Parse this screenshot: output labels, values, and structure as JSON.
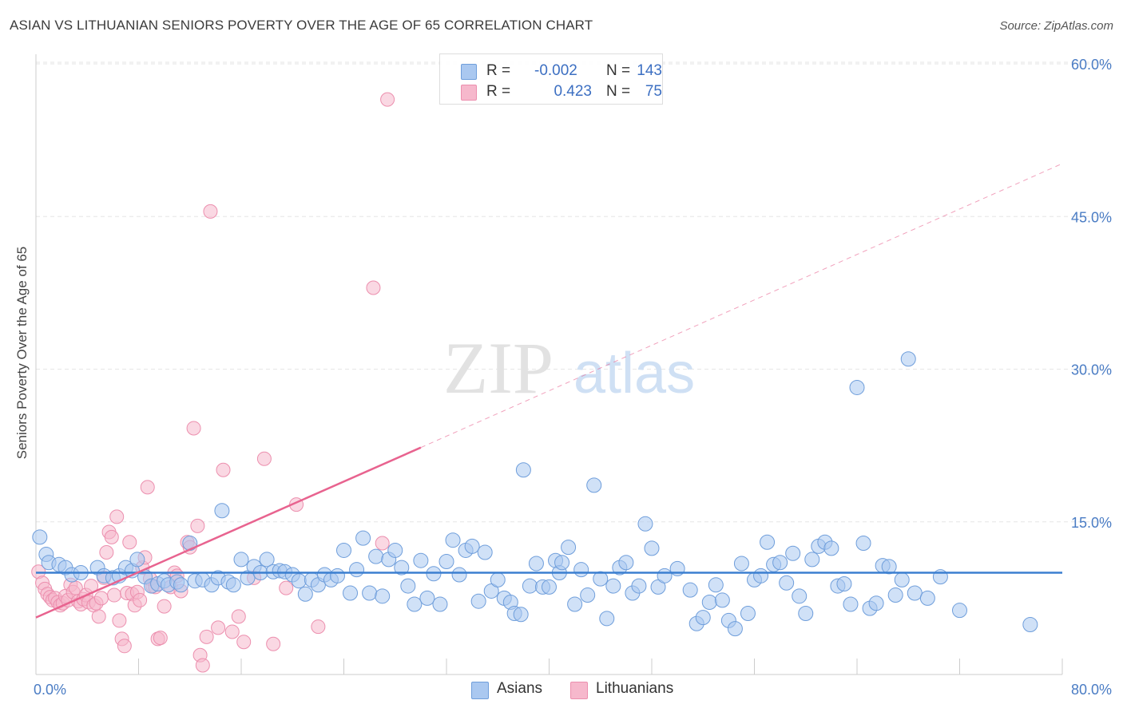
{
  "header": {
    "title": "ASIAN VS LITHUANIAN SENIORS POVERTY OVER THE AGE OF 65 CORRELATION CHART",
    "source": "Source: ZipAtlas.com"
  },
  "watermark": {
    "zip": "ZIP",
    "atlas": "atlas"
  },
  "legend": {
    "rows": [
      {
        "r_label": "R =",
        "r_value": "-0.002",
        "n_label": "N =",
        "n_value": "143"
      },
      {
        "r_label": "R =",
        "r_value": "0.423",
        "n_label": "N =",
        "n_value": "75"
      }
    ],
    "bottom": [
      "Asians",
      "Lithuanians"
    ]
  },
  "colors": {
    "asian_fill": "#aac8f0",
    "asian_stroke": "#6f9edb",
    "asian_line": "#3b7fd0",
    "lith_fill": "#f6b8cc",
    "lith_stroke": "#ec8fae",
    "lith_line": "#e8638f",
    "tick_text": "#4a7cc4",
    "grid": "#e6e6e6"
  },
  "chart_data": {
    "type": "scatter",
    "title": "ASIAN VS LITHUANIAN SENIORS POVERTY OVER THE AGE OF 65 CORRELATION CHART",
    "xlabel": "",
    "ylabel": "Seniors Poverty Over the Age of 65",
    "xlim": [
      0,
      80
    ],
    "ylim": [
      0,
      63
    ],
    "x_tick_labels": [
      "0.0%",
      "80.0%"
    ],
    "y_ticks": [
      15,
      30,
      45,
      60
    ],
    "y_tick_labels": [
      "15.0%",
      "30.0%",
      "45.0%",
      "60.0%"
    ],
    "grid": "horizontal dashed",
    "series": [
      {
        "name": "Asians",
        "stats": {
          "R": -0.002,
          "N": 143
        },
        "trend": {
          "x": [
            0,
            80
          ],
          "y": [
            10.0,
            10.0
          ]
        },
        "points": [
          [
            0.3,
            13.5
          ],
          [
            0.8,
            11.8
          ],
          [
            1.0,
            11.0
          ],
          [
            1.8,
            10.8
          ],
          [
            2.3,
            10.5
          ],
          [
            2.8,
            9.8
          ],
          [
            3.5,
            10.0
          ],
          [
            4.8,
            10.5
          ],
          [
            5.3,
            9.7
          ],
          [
            6.0,
            9.5
          ],
          [
            6.5,
            9.7
          ],
          [
            7.0,
            10.5
          ],
          [
            7.5,
            10.2
          ],
          [
            7.9,
            11.3
          ],
          [
            8.5,
            9.6
          ],
          [
            9.0,
            8.7
          ],
          [
            9.5,
            8.9
          ],
          [
            10.0,
            9.2
          ],
          [
            10.3,
            8.8
          ],
          [
            11.0,
            9.1
          ],
          [
            11.3,
            8.8
          ],
          [
            12.0,
            12.9
          ],
          [
            12.4,
            9.2
          ],
          [
            13.0,
            9.3
          ],
          [
            13.7,
            8.8
          ],
          [
            14.2,
            9.5
          ],
          [
            14.5,
            16.1
          ],
          [
            15.0,
            9.1
          ],
          [
            15.4,
            8.8
          ],
          [
            16.0,
            11.3
          ],
          [
            16.5,
            9.5
          ],
          [
            17.0,
            10.6
          ],
          [
            17.5,
            10.0
          ],
          [
            18.0,
            11.3
          ],
          [
            18.5,
            10.1
          ],
          [
            19.0,
            10.2
          ],
          [
            19.4,
            10.1
          ],
          [
            20.0,
            9.8
          ],
          [
            20.5,
            9.2
          ],
          [
            21.0,
            7.9
          ],
          [
            21.5,
            9.3
          ],
          [
            22.0,
            8.8
          ],
          [
            22.5,
            9.8
          ],
          [
            23.0,
            9.3
          ],
          [
            23.5,
            9.7
          ],
          [
            24.0,
            12.2
          ],
          [
            24.5,
            8.0
          ],
          [
            25.0,
            10.3
          ],
          [
            25.5,
            13.4
          ],
          [
            26.0,
            8.0
          ],
          [
            26.5,
            11.6
          ],
          [
            27.0,
            7.7
          ],
          [
            27.5,
            11.3
          ],
          [
            28.0,
            12.2
          ],
          [
            28.5,
            10.5
          ],
          [
            29.0,
            8.7
          ],
          [
            29.5,
            6.9
          ],
          [
            30.0,
            11.2
          ],
          [
            30.5,
            7.5
          ],
          [
            31.0,
            9.9
          ],
          [
            31.5,
            6.9
          ],
          [
            32.0,
            11.1
          ],
          [
            32.5,
            13.2
          ],
          [
            33.0,
            9.8
          ],
          [
            33.5,
            12.2
          ],
          [
            34.0,
            12.6
          ],
          [
            34.5,
            7.2
          ],
          [
            35.0,
            12.0
          ],
          [
            35.5,
            8.2
          ],
          [
            36.0,
            9.3
          ],
          [
            36.5,
            7.5
          ],
          [
            37.0,
            7.1
          ],
          [
            37.3,
            6.0
          ],
          [
            37.8,
            5.9
          ],
          [
            38.0,
            20.1
          ],
          [
            38.5,
            8.7
          ],
          [
            39.0,
            10.9
          ],
          [
            39.5,
            8.6
          ],
          [
            40.0,
            8.6
          ],
          [
            40.5,
            11.2
          ],
          [
            40.8,
            10.0
          ],
          [
            41.0,
            11.0
          ],
          [
            41.5,
            12.5
          ],
          [
            42.0,
            6.9
          ],
          [
            42.5,
            10.3
          ],
          [
            43.0,
            7.8
          ],
          [
            43.5,
            18.6
          ],
          [
            44.0,
            9.4
          ],
          [
            44.5,
            5.5
          ],
          [
            45.0,
            8.7
          ],
          [
            45.5,
            10.5
          ],
          [
            46.0,
            11.0
          ],
          [
            46.5,
            8.0
          ],
          [
            47.0,
            8.7
          ],
          [
            47.5,
            14.8
          ],
          [
            48.0,
            12.4
          ],
          [
            48.5,
            8.6
          ],
          [
            49.0,
            9.7
          ],
          [
            50.0,
            10.4
          ],
          [
            51.0,
            8.3
          ],
          [
            51.5,
            5.0
          ],
          [
            52.0,
            5.6
          ],
          [
            52.5,
            7.1
          ],
          [
            53.0,
            8.8
          ],
          [
            53.5,
            7.3
          ],
          [
            54.0,
            5.3
          ],
          [
            54.5,
            4.5
          ],
          [
            55.0,
            10.9
          ],
          [
            55.5,
            6.0
          ],
          [
            56.0,
            9.3
          ],
          [
            56.5,
            9.7
          ],
          [
            57.0,
            13.0
          ],
          [
            57.5,
            10.8
          ],
          [
            58.0,
            11.0
          ],
          [
            58.5,
            9.0
          ],
          [
            59.0,
            11.9
          ],
          [
            59.5,
            7.7
          ],
          [
            60.0,
            6.0
          ],
          [
            60.5,
            11.3
          ],
          [
            61.0,
            12.6
          ],
          [
            61.5,
            13.0
          ],
          [
            62.0,
            12.4
          ],
          [
            62.5,
            8.7
          ],
          [
            63.0,
            8.9
          ],
          [
            63.5,
            6.9
          ],
          [
            64.0,
            28.2
          ],
          [
            64.5,
            12.9
          ],
          [
            65.0,
            6.5
          ],
          [
            65.5,
            7.0
          ],
          [
            66.0,
            10.7
          ],
          [
            66.5,
            10.6
          ],
          [
            67.0,
            7.8
          ],
          [
            67.5,
            9.3
          ],
          [
            68.0,
            31.0
          ],
          [
            72.0,
            6.3
          ],
          [
            77.5,
            4.9
          ],
          [
            68.5,
            8.0
          ],
          [
            69.5,
            7.5
          ],
          [
            70.5,
            9.6
          ]
        ]
      },
      {
        "name": "Lithuanians",
        "stats": {
          "R": 0.423,
          "N": 75
        },
        "trend": {
          "x": [
            0,
            30
          ],
          "y": [
            5.6,
            22.3
          ],
          "dashed_x": [
            30,
            80
          ],
          "dashed_y": [
            22.3,
            50.2
          ]
        },
        "points": [
          [
            0.2,
            10.1
          ],
          [
            0.5,
            9.0
          ],
          [
            0.7,
            8.4
          ],
          [
            0.9,
            7.9
          ],
          [
            1.1,
            7.6
          ],
          [
            1.3,
            7.3
          ],
          [
            1.5,
            7.5
          ],
          [
            1.7,
            7.1
          ],
          [
            1.9,
            6.8
          ],
          [
            2.1,
            7.0
          ],
          [
            2.3,
            7.7
          ],
          [
            2.5,
            7.3
          ],
          [
            2.7,
            8.8
          ],
          [
            2.9,
            8.1
          ],
          [
            3.1,
            8.5
          ],
          [
            3.3,
            7.2
          ],
          [
            3.5,
            6.9
          ],
          [
            3.7,
            7.4
          ],
          [
            3.9,
            7.8
          ],
          [
            4.1,
            7.1
          ],
          [
            4.3,
            8.7
          ],
          [
            4.5,
            6.8
          ],
          [
            4.7,
            7.0
          ],
          [
            4.9,
            5.7
          ],
          [
            5.1,
            7.5
          ],
          [
            5.3,
            9.5
          ],
          [
            5.5,
            12.0
          ],
          [
            5.7,
            14.0
          ],
          [
            5.9,
            13.5
          ],
          [
            6.1,
            7.8
          ],
          [
            6.3,
            15.5
          ],
          [
            6.5,
            5.3
          ],
          [
            6.7,
            3.5
          ],
          [
            6.9,
            2.8
          ],
          [
            7.1,
            8.0
          ],
          [
            7.3,
            13.0
          ],
          [
            7.5,
            7.9
          ],
          [
            7.7,
            6.8
          ],
          [
            7.9,
            8.1
          ],
          [
            8.1,
            7.3
          ],
          [
            8.3,
            10.5
          ],
          [
            8.5,
            11.5
          ],
          [
            8.7,
            18.4
          ],
          [
            8.9,
            9.4
          ],
          [
            9.1,
            8.7
          ],
          [
            9.3,
            8.6
          ],
          [
            9.5,
            3.5
          ],
          [
            9.7,
            3.6
          ],
          [
            10.0,
            6.7
          ],
          [
            10.5,
            8.6
          ],
          [
            10.8,
            10.0
          ],
          [
            11.0,
            9.7
          ],
          [
            11.3,
            8.2
          ],
          [
            11.8,
            13.0
          ],
          [
            12.0,
            12.5
          ],
          [
            12.3,
            24.2
          ],
          [
            12.6,
            14.6
          ],
          [
            12.8,
            1.9
          ],
          [
            13.0,
            0.9
          ],
          [
            13.3,
            3.7
          ],
          [
            13.6,
            45.5
          ],
          [
            14.2,
            4.6
          ],
          [
            14.6,
            20.1
          ],
          [
            15.3,
            4.2
          ],
          [
            15.8,
            5.7
          ],
          [
            16.2,
            3.2
          ],
          [
            17.0,
            9.5
          ],
          [
            17.8,
            21.2
          ],
          [
            18.5,
            3.0
          ],
          [
            19.5,
            8.5
          ],
          [
            20.3,
            16.7
          ],
          [
            22.0,
            4.7
          ],
          [
            26.3,
            38.0
          ],
          [
            27.4,
            56.5
          ],
          [
            27.0,
            12.9
          ]
        ]
      }
    ]
  }
}
